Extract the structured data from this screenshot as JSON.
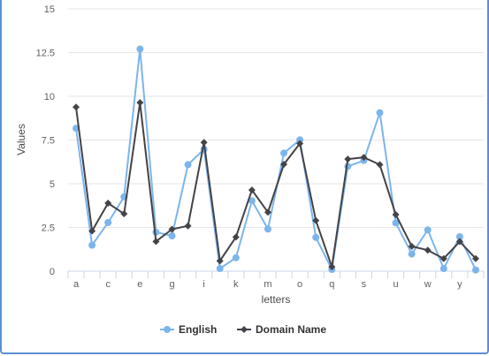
{
  "chart_data": {
    "type": "line",
    "title": "",
    "xlabel": "letters",
    "ylabel": "Values",
    "ylim": [
      0,
      15
    ],
    "yticks": [
      "0",
      "2.5",
      "5",
      "7.5",
      "10",
      "12.5",
      "15"
    ],
    "ytick_values": [
      0,
      2.5,
      5,
      7.5,
      10,
      12.5,
      15
    ],
    "categories": [
      "a",
      "b",
      "c",
      "d",
      "e",
      "f",
      "g",
      "h",
      "i",
      "j",
      "k",
      "l",
      "m",
      "n",
      "o",
      "p",
      "q",
      "r",
      "s",
      "t",
      "u",
      "v",
      "w",
      "x",
      "y",
      "z"
    ],
    "shown_tick_labels": [
      "a",
      "c",
      "e",
      "g",
      "i",
      "k",
      "m",
      "o",
      "q",
      "s",
      "u",
      "w",
      "y"
    ],
    "grid": "horizontal",
    "legend_position": "bottom-center",
    "series": [
      {
        "name": "English",
        "color": "#7cb5ec",
        "marker": "circle",
        "values": [
          8.17,
          1.49,
          2.78,
          4.25,
          12.7,
          2.23,
          2.02,
          6.09,
          6.97,
          0.15,
          0.77,
          4.03,
          2.41,
          6.75,
          7.51,
          1.93,
          0.1,
          5.99,
          6.33,
          9.06,
          2.76,
          0.98,
          2.36,
          0.15,
          1.97,
          0.07
        ]
      },
      {
        "name": "Domain Name",
        "color": "#434348",
        "marker": "diamond",
        "values": [
          9.38,
          2.3,
          3.89,
          3.28,
          9.64,
          1.7,
          2.4,
          2.59,
          7.36,
          0.59,
          1.95,
          4.64,
          3.37,
          6.11,
          7.3,
          2.9,
          0.25,
          6.41,
          6.51,
          6.09,
          3.23,
          1.42,
          1.2,
          0.72,
          1.69,
          0.72
        ]
      }
    ]
  }
}
